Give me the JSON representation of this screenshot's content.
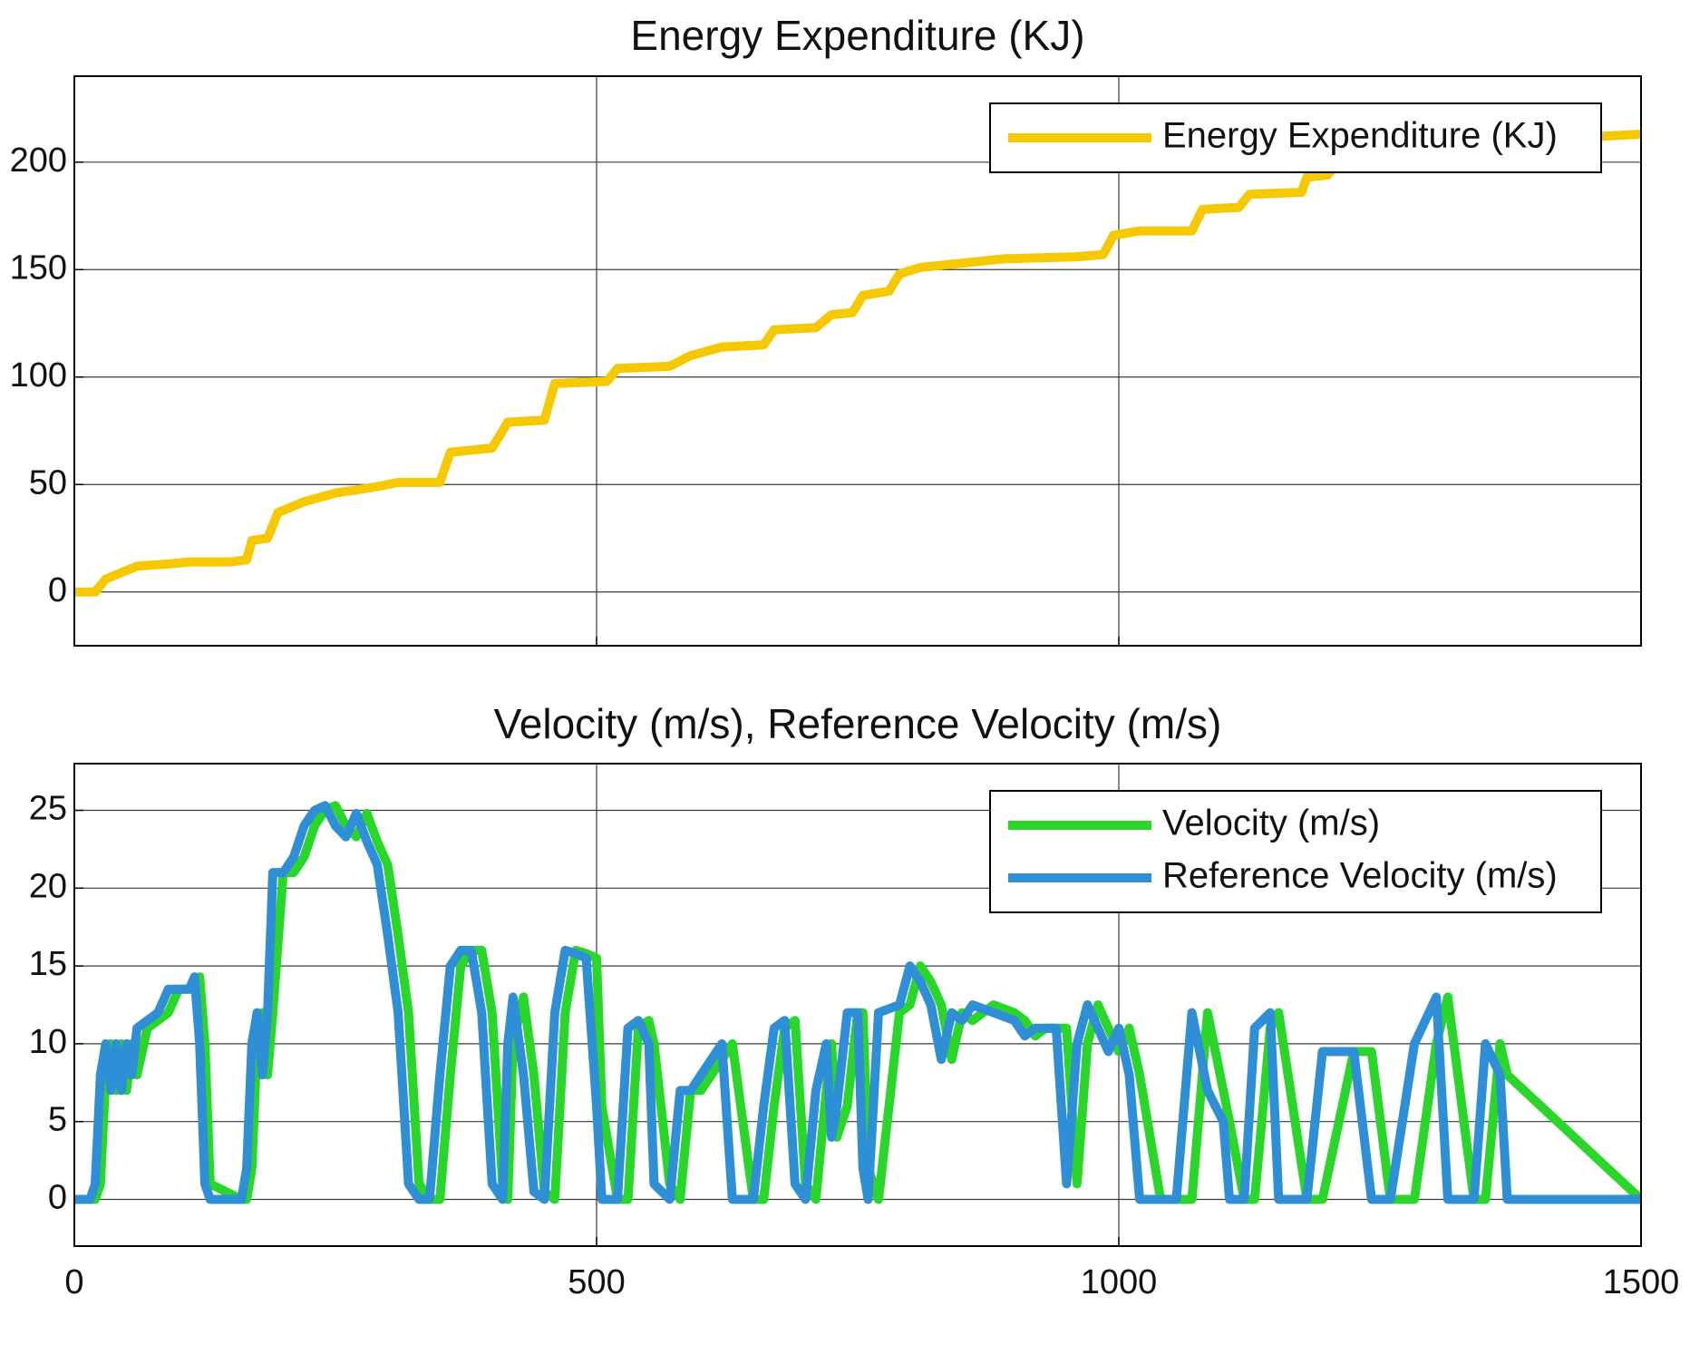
{
  "chart_data": [
    {
      "type": "line",
      "title": "Energy Expenditure (KJ)",
      "x": [
        0,
        20,
        30,
        40,
        60,
        90,
        110,
        150,
        165,
        170,
        185,
        195,
        220,
        250,
        290,
        310,
        350,
        360,
        400,
        415,
        450,
        460,
        510,
        520,
        570,
        590,
        620,
        660,
        670,
        710,
        725,
        745,
        755,
        780,
        790,
        810,
        850,
        890,
        960,
        985,
        995,
        1020,
        1070,
        1080,
        1115,
        1125,
        1175,
        1180,
        1200,
        1210,
        1460,
        1500
      ],
      "series": [
        {
          "name": "Energy Expenditure (KJ)",
          "color": "#f5c800",
          "values": [
            0,
            0,
            6,
            8,
            12,
            13,
            14,
            14,
            15,
            24,
            25,
            37,
            42,
            46,
            49,
            51,
            51,
            65,
            67,
            79,
            80,
            97,
            98,
            104,
            105,
            110,
            114,
            115,
            122,
            123,
            129,
            130,
            138,
            140,
            148,
            151,
            153,
            155,
            156,
            157,
            166,
            168,
            168,
            178,
            179,
            185,
            186,
            193,
            194,
            200,
            212,
            213
          ]
        }
      ],
      "xlim": [
        0,
        1500
      ],
      "ylim": [
        -25,
        240
      ],
      "xticks": [
        0,
        500,
        1000,
        1500
      ],
      "yticks": [
        0,
        50,
        100,
        150,
        200
      ],
      "show_xtick_labels": false,
      "grid": true,
      "legend": "upper right"
    },
    {
      "type": "line",
      "title": "Velocity (m/s), Reference Velocity (m/s)",
      "x": [
        0,
        15,
        20,
        25,
        30,
        35,
        40,
        45,
        50,
        55,
        60,
        70,
        80,
        90,
        100,
        110,
        115,
        120,
        125,
        130,
        160,
        165,
        170,
        175,
        180,
        185,
        190,
        200,
        210,
        220,
        230,
        240,
        250,
        260,
        270,
        280,
        290,
        300,
        310,
        320,
        330,
        340,
        350,
        360,
        370,
        380,
        390,
        400,
        410,
        415,
        420,
        430,
        440,
        450,
        460,
        470,
        480,
        490,
        500,
        505,
        520,
        530,
        540,
        550,
        555,
        570,
        580,
        590,
        600,
        610,
        620,
        630,
        650,
        660,
        670,
        680,
        690,
        700,
        710,
        720,
        725,
        730,
        740,
        750,
        755,
        760,
        770,
        790,
        800,
        810,
        820,
        830,
        840,
        850,
        860,
        880,
        900,
        910,
        920,
        930,
        940,
        950,
        960,
        970,
        980,
        990,
        1000,
        1010,
        1020,
        1040,
        1055,
        1070,
        1085,
        1100,
        1106,
        1120,
        1130,
        1145,
        1153,
        1180,
        1195,
        1225,
        1242,
        1260,
        1283,
        1304,
        1315,
        1340,
        1351,
        1365,
        1372,
        1500
      ],
      "series": [
        {
          "name": "Velocity (m/s)",
          "color": "#2bd62b",
          "values": [
            0,
            0,
            0,
            1,
            8,
            10,
            7,
            10,
            7,
            10,
            8,
            11,
            11.5,
            12,
            13.5,
            13.5,
            13.5,
            14.3,
            10,
            1,
            0,
            0,
            2,
            10,
            12,
            8,
            12,
            21,
            21,
            22,
            24,
            25,
            25.3,
            24,
            23.3,
            24.8,
            23,
            21.5,
            17,
            12,
            1,
            0,
            0,
            8,
            15,
            16,
            16,
            12,
            1,
            0,
            10,
            13,
            8,
            0.5,
            0,
            12,
            16,
            15.8,
            15.5,
            6,
            0,
            0,
            11,
            11.5,
            10,
            1,
            0,
            7,
            7,
            8,
            9,
            10,
            0,
            0,
            6,
            11,
            11.5,
            1,
            0,
            7,
            10,
            4,
            6,
            12,
            12,
            2,
            0,
            12,
            12.5,
            15,
            14,
            12.5,
            9,
            12,
            11.5,
            12.5,
            12,
            11.5,
            10.5,
            11,
            11,
            11,
            1,
            10,
            12.5,
            11,
            9.5,
            11,
            8,
            0,
            0,
            0,
            12,
            7,
            5,
            0,
            0,
            11,
            12,
            0,
            0,
            9.5,
            9.5,
            0,
            0,
            10,
            13,
            0,
            0,
            10,
            8,
            0
          ]
        },
        {
          "name": "Reference Velocity (m/s)",
          "color": "#2e8fd6",
          "values": [
            0,
            0,
            1,
            8,
            10,
            7,
            10,
            7,
            10,
            8,
            11,
            11.5,
            12,
            13.5,
            13.5,
            13.5,
            14.3,
            10,
            1,
            0,
            0,
            2,
            10,
            12,
            8,
            12,
            21,
            21,
            22,
            24,
            25,
            25.3,
            24,
            23.3,
            24.8,
            23,
            21.5,
            17,
            12,
            1,
            0,
            0,
            8,
            15,
            16,
            16,
            12,
            1,
            0,
            10,
            13,
            8,
            0.5,
            0,
            12,
            16,
            15.8,
            15.5,
            6,
            0,
            0,
            11,
            11.5,
            10,
            1,
            0,
            7,
            7,
            8,
            9,
            10,
            0,
            0,
            6,
            11,
            11.5,
            1,
            0,
            7,
            10,
            4,
            6,
            12,
            12,
            2,
            0,
            12,
            12.5,
            15,
            14,
            12.5,
            9,
            12,
            11.5,
            12.5,
            12,
            11.5,
            10.5,
            11,
            11,
            11,
            1,
            10,
            12.5,
            11,
            9.5,
            11,
            8,
            0,
            0,
            0,
            12,
            7,
            5,
            0,
            0,
            11,
            12,
            0,
            0,
            9.5,
            9.5,
            0,
            0,
            10,
            13,
            0,
            0,
            10,
            8,
            0,
            0
          ]
        }
      ],
      "xlim": [
        0,
        1500
      ],
      "ylim": [
        -3,
        28
      ],
      "xticks": [
        0,
        500,
        1000,
        1500
      ],
      "yticks": [
        0,
        5,
        10,
        15,
        20,
        25
      ],
      "show_xtick_labels": true,
      "grid": true,
      "legend": "upper right"
    }
  ]
}
